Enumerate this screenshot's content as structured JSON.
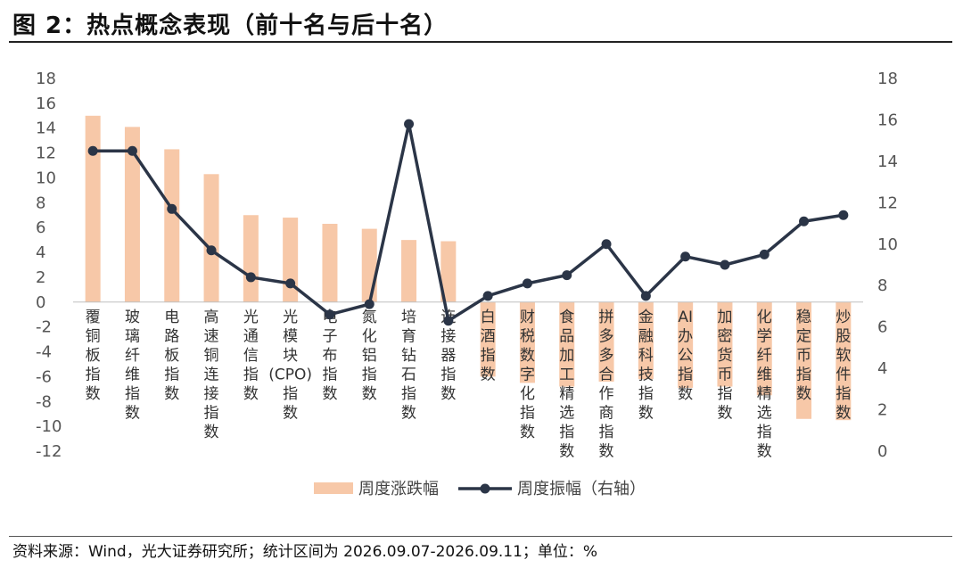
{
  "header": {
    "title": "图 2：热点概念表现（前十名与后十名）"
  },
  "footer": {
    "source": "资料来源：Wind，光大证券研究所；统计区间为 2026.09.07-2026.09.11；单位：%"
  },
  "chart_data": {
    "type": "bar",
    "title": "图 2：热点概念表现（前十名与后十名）",
    "categories": [
      "覆铜板指数",
      "玻璃纤维指数",
      "电路板指数",
      "高速铜连接指数",
      "光通信指数",
      "光模块(CPO)指数",
      "电子布指数",
      "氮化铝指数",
      "培育钻石指数",
      "连接器指数",
      "白酒指数",
      "财税数字化指数",
      "食品加工精选指数",
      "拼多多合作商指数",
      "金融科技指数",
      "AI办公指数",
      "加密货币指数",
      "化学纤维精选指数",
      "稳定币指数",
      "炒股软件指数"
    ],
    "series": [
      {
        "name": "周度涨跌幅",
        "type": "bar",
        "axis": "left",
        "color": "#f7c8a8",
        "values": [
          15.0,
          14.1,
          12.3,
          10.3,
          7.0,
          6.8,
          6.3,
          5.9,
          5.0,
          4.9,
          -6.0,
          -6.5,
          -6.8,
          -6.4,
          -6.2,
          -6.9,
          -6.8,
          -7.5,
          -9.4,
          -9.5
        ]
      },
      {
        "name": "周度振幅（右轴）",
        "type": "line",
        "axis": "right",
        "color": "#2b3547",
        "values": [
          14.5,
          14.5,
          11.7,
          9.7,
          8.4,
          8.1,
          6.6,
          7.1,
          15.8,
          6.3,
          7.5,
          8.1,
          8.5,
          10.0,
          7.5,
          9.4,
          9.0,
          9.5,
          11.1,
          11.4
        ]
      }
    ],
    "y_left": {
      "min": -12,
      "max": 18,
      "step": 2
    },
    "y_right": {
      "min": 0,
      "max": 18,
      "step": 2
    },
    "legend_position": "bottom-center",
    "grid": false
  }
}
